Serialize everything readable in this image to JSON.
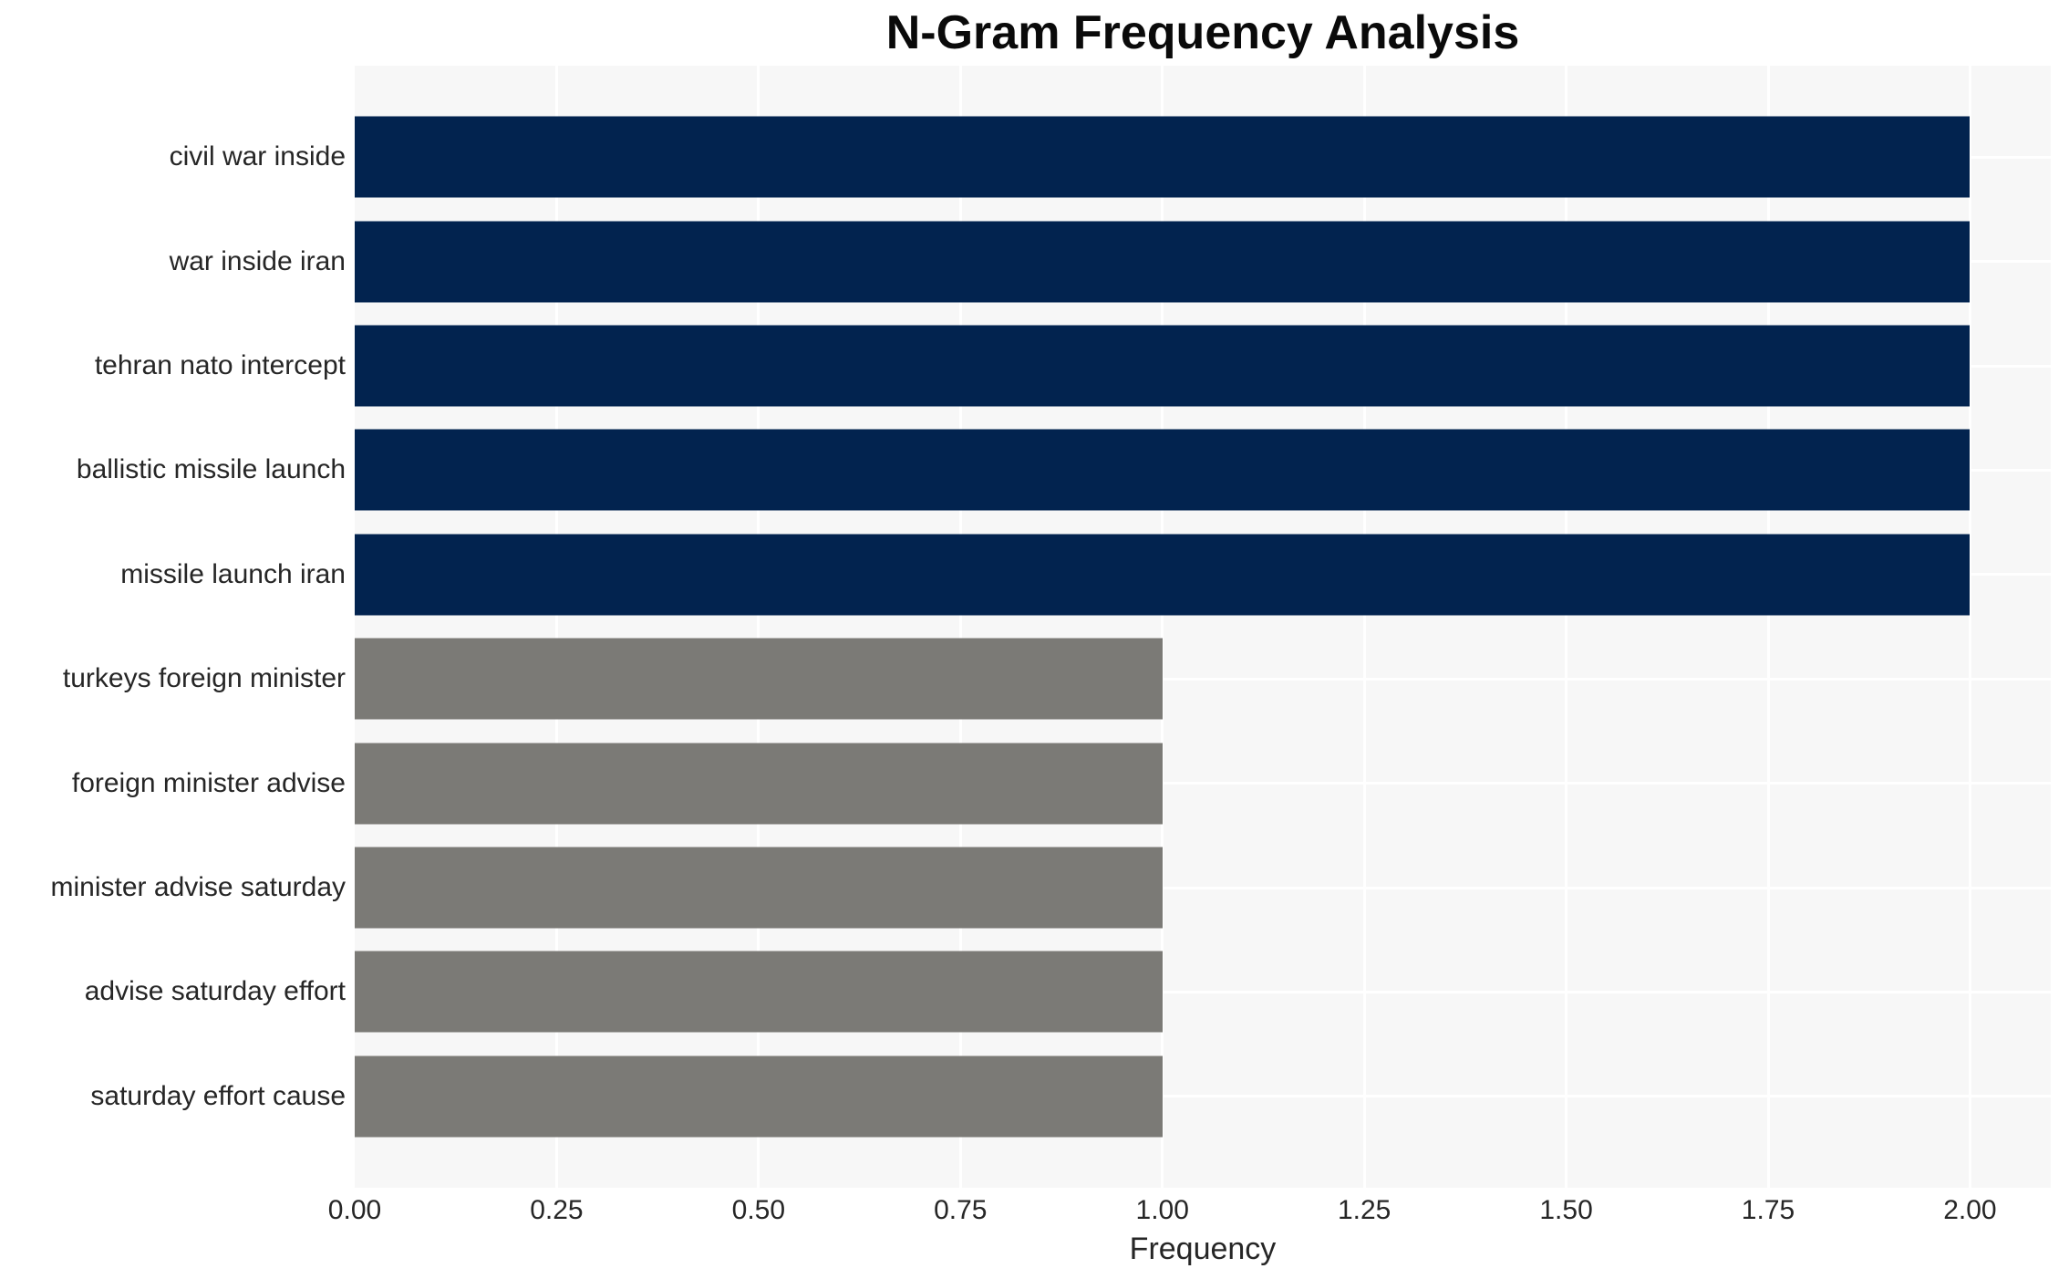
{
  "chart_data": {
    "type": "bar",
    "orientation": "horizontal",
    "title": "N-Gram Frequency Analysis",
    "xlabel": "Frequency",
    "ylabel": "",
    "categories": [
      "civil war inside",
      "war inside iran",
      "tehran nato intercept",
      "ballistic missile launch",
      "missile launch iran",
      "turkeys foreign minister",
      "foreign minister advise",
      "minister advise saturday",
      "advise saturday effort",
      "saturday effort cause"
    ],
    "values": [
      2,
      2,
      2,
      2,
      2,
      1,
      1,
      1,
      1,
      1
    ],
    "bar_colors": [
      "#02234f",
      "#02234f",
      "#02234f",
      "#02234f",
      "#02234f",
      "#7b7a76",
      "#7b7a76",
      "#7b7a76",
      "#7b7a76",
      "#7b7a76"
    ],
    "xlim": [
      0,
      2.1
    ],
    "xticks": [
      0,
      0.25,
      0.5,
      0.75,
      1.0,
      1.25,
      1.5,
      1.75,
      2.0
    ],
    "xtick_labels": [
      "0.00",
      "0.25",
      "0.50",
      "0.75",
      "1.00",
      "1.25",
      "1.50",
      "1.75",
      "2.00"
    ],
    "grid": {
      "show": true,
      "axis": "both",
      "color": "#ffffff"
    },
    "legend": "none",
    "plot_bg": "#f7f7f7",
    "page_bg": "#ffffff",
    "colors": {
      "bar_high": "#02234f",
      "bar_low": "#7b7a76",
      "text": "#262626",
      "title": "#0a0a0a"
    }
  }
}
